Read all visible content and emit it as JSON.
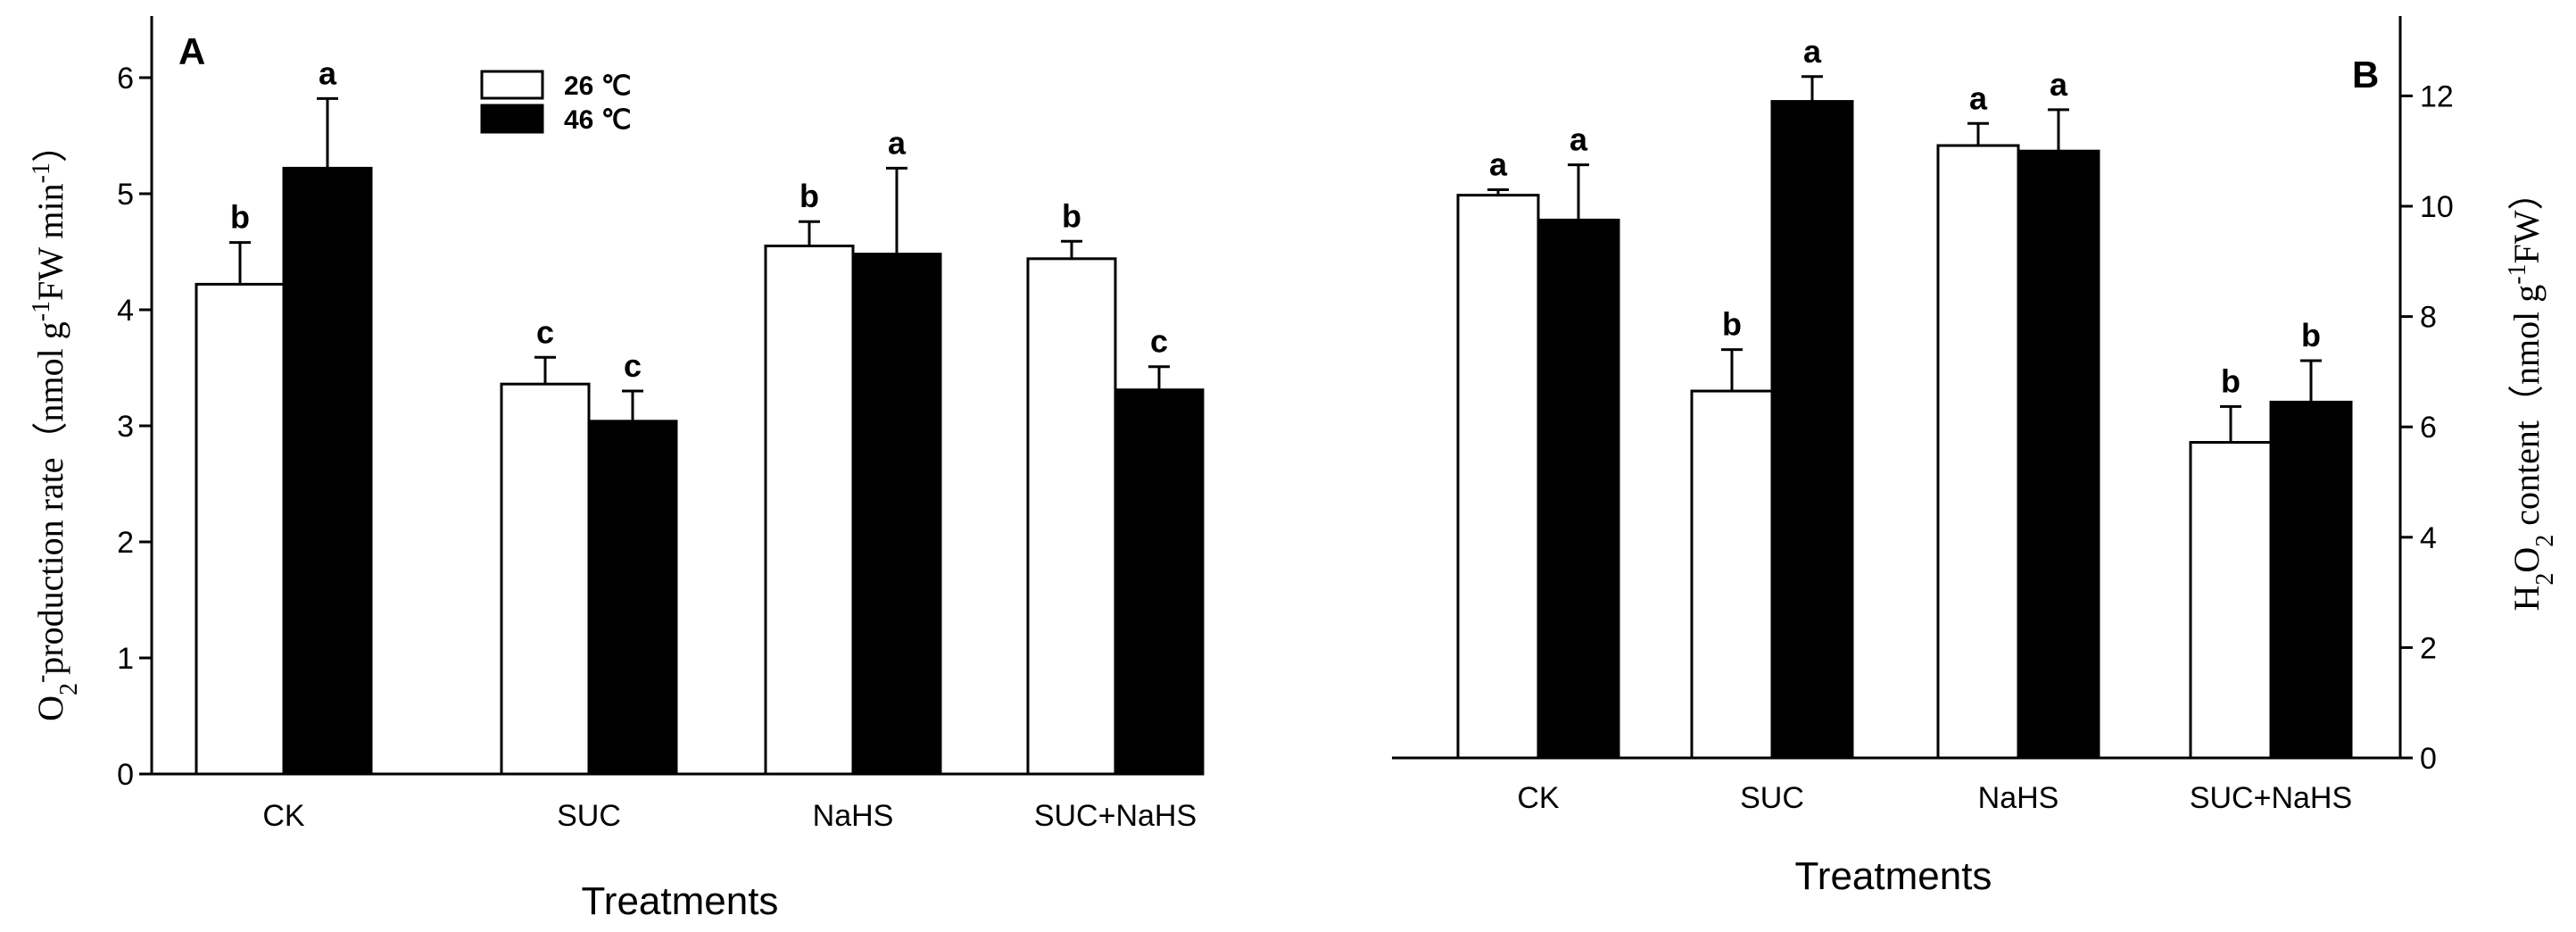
{
  "legend": [
    {
      "label": "26 ℃",
      "fill": "#ffffff"
    },
    {
      "label": "46 ℃",
      "fill": "#000000"
    }
  ],
  "chart_data": [
    {
      "panel": "A",
      "type": "bar",
      "categories": [
        "CK",
        "SUC",
        "NaHS",
        "SUC+NaHS"
      ],
      "xlabel": "Treatments",
      "ylabel": "O2- production rate (nmol g-1 FW min-1)",
      "ylim": [
        0,
        6.4
      ],
      "yticks": [
        "0",
        "1",
        "2",
        "3",
        "4",
        "5",
        "6"
      ],
      "y_axis_side": "left",
      "series": [
        {
          "name": "26 ℃",
          "values": [
            4.22,
            3.36,
            4.55,
            4.44
          ],
          "errors": [
            0.36,
            0.23,
            0.21,
            0.15
          ],
          "letters": [
            "b",
            "c",
            "b",
            "b"
          ],
          "color": "#ffffff"
        },
        {
          "name": "46 ℃",
          "values": [
            5.22,
            3.04,
            4.48,
            3.31
          ],
          "errors": [
            0.6,
            0.26,
            0.74,
            0.2
          ],
          "letters": [
            "a",
            "c",
            "a",
            "c"
          ],
          "color": "#000000"
        }
      ]
    },
    {
      "panel": "B",
      "type": "bar",
      "categories": [
        "CK",
        "SUC",
        "NaHS",
        "SUC+NaHS"
      ],
      "xlabel": "Treatments",
      "ylabel": "H2O2 content (nmol g-1 FW)",
      "ylim": [
        0,
        13.1
      ],
      "yticks": [
        "0",
        "2",
        "4",
        "6",
        "8",
        "10",
        "12"
      ],
      "y_axis_side": "right",
      "series": [
        {
          "name": "26 ℃",
          "values": [
            10.2,
            6.65,
            11.1,
            5.72
          ],
          "errors": [
            0.1,
            0.75,
            0.4,
            0.65
          ],
          "letters": [
            "a",
            "b",
            "a",
            "b"
          ],
          "color": "#ffffff"
        },
        {
          "name": "46 ℃",
          "values": [
            9.75,
            11.9,
            11.0,
            6.45
          ],
          "errors": [
            1.0,
            0.45,
            0.75,
            0.75
          ],
          "letters": [
            "a",
            "a",
            "a",
            "b"
          ],
          "color": "#000000"
        }
      ]
    }
  ]
}
